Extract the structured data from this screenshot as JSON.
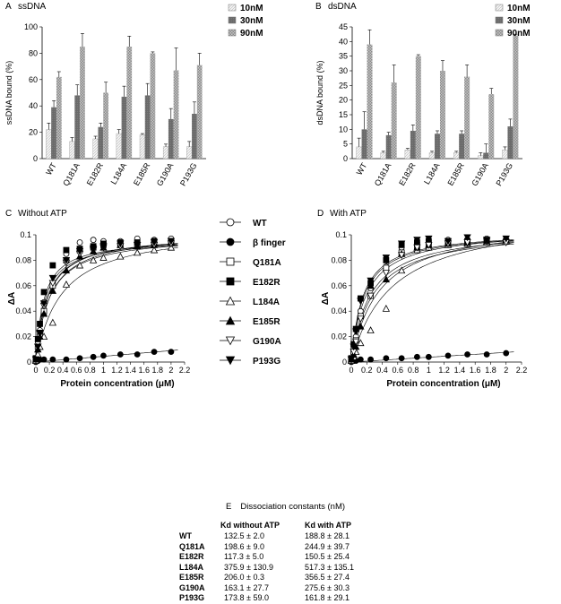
{
  "chart_data": [
    {
      "type": "bar",
      "panel_letter": "A",
      "title": "ssDNA",
      "ylabel": "ssDNA bound (%)",
      "ylim": [
        0,
        100
      ],
      "yticks": [
        0,
        20,
        40,
        60,
        80,
        100
      ],
      "categories": [
        "WT",
        "Q181A",
        "E182R",
        "L184A",
        "E185R",
        "G190A",
        "P193G"
      ],
      "series": [
        {
          "name": "10nM",
          "values": [
            22,
            13,
            15,
            19,
            18,
            9,
            9
          ],
          "errors": [
            5,
            3,
            2,
            3,
            1,
            2,
            4
          ],
          "color": "#e2e2e2"
        },
        {
          "name": "30nM",
          "values": [
            39,
            48,
            24,
            47,
            48,
            30,
            34
          ],
          "errors": [
            5,
            8,
            3,
            8,
            9,
            8,
            9
          ],
          "color": "#6d6d6d"
        },
        {
          "name": "90nM",
          "values": [
            62,
            85,
            50,
            85,
            80,
            67,
            71
          ],
          "errors": [
            4,
            10,
            8,
            8,
            1,
            17,
            9
          ],
          "color": "#a8a8a8"
        }
      ]
    },
    {
      "type": "bar",
      "panel_letter": "B",
      "title": "dsDNA",
      "ylabel": "dsDNA bound (%)",
      "ylim": [
        0,
        45
      ],
      "yticks": [
        0,
        5,
        10,
        15,
        20,
        25,
        30,
        35,
        40,
        45
      ],
      "categories": [
        "WT",
        "Q181A",
        "E182R",
        "L184A",
        "E185R",
        "G190A",
        "P193G"
      ],
      "series": [
        {
          "name": "10nM",
          "values": [
            4,
            2,
            3,
            2,
            2,
            1,
            3
          ],
          "errors": [
            3,
            0.5,
            0.5,
            0.5,
            0.5,
            1,
            1
          ],
          "color": "#e2e2e2"
        },
        {
          "name": "30nM",
          "values": [
            10,
            8,
            9.5,
            8.5,
            8.5,
            2,
            11
          ],
          "errors": [
            6,
            1,
            2,
            1,
            1,
            3,
            2.5
          ],
          "color": "#6d6d6d"
        },
        {
          "name": "90nM",
          "values": [
            39,
            26,
            35,
            30,
            28,
            22,
            42
          ],
          "errors": [
            5,
            6,
            0.5,
            3.5,
            4,
            2,
            0.5
          ],
          "color": "#a8a8a8"
        }
      ]
    },
    {
      "type": "scatter",
      "panel_letter": "C",
      "title": "Without ATP",
      "xlabel": "Protein concentration (μM)",
      "ylabel": "ΔA",
      "xlim": [
        0,
        2.2
      ],
      "ylim": [
        0,
        0.1
      ],
      "xticks": [
        "0",
        "0.2",
        "0.4",
        "0.6",
        "0.8",
        "1",
        "1.2",
        "1.4",
        "1.6",
        "1.8",
        "2",
        "2.2"
      ],
      "yticks": [
        "0",
        "0.02",
        "0.04",
        "0.06",
        "0.08",
        "0.1"
      ],
      "x": [
        0,
        0.03,
        0.06,
        0.12,
        0.25,
        0.45,
        0.65,
        0.85,
        1.0,
        1.25,
        1.5,
        1.75,
        2.0
      ],
      "series": [
        {
          "name": "WT",
          "marker": "circle-open",
          "fit_max": 0.097,
          "kd_uM": 0.1325,
          "values": [
            0.001,
            0.016,
            0.025,
            0.047,
            0.062,
            0.085,
            0.094,
            0.096,
            0.095,
            0.095,
            0.097,
            0.096,
            0.097
          ]
        },
        {
          "name": "β finger",
          "marker": "circle-filled",
          "fit_slope": 0.0045,
          "values": [
            0,
            0.001,
            0.002,
            0.002,
            0.002,
            0.002,
            0.003,
            0.004,
            0.005,
            0.006,
            0.006,
            0.008,
            0.008
          ]
        },
        {
          "name": "Q181A",
          "marker": "square-open",
          "fit_max": 0.1,
          "kd_uM": 0.1986,
          "values": [
            0.002,
            0.012,
            0.02,
            0.04,
            0.06,
            0.08,
            0.088,
            0.09,
            0.092,
            0.092,
            0.093,
            0.094,
            0.095
          ]
        },
        {
          "name": "E182R",
          "marker": "square-filled",
          "fit_max": 0.097,
          "kd_uM": 0.1173,
          "values": [
            0.003,
            0.018,
            0.03,
            0.055,
            0.076,
            0.088,
            0.089,
            0.091,
            0.093,
            0.094,
            0.094,
            0.095,
            0.094
          ]
        },
        {
          "name": "L184A",
          "marker": "triangle-up-open",
          "fit_max": 0.106,
          "kd_uM": 0.3759,
          "values": [
            0.001,
            0.006,
            0.012,
            0.02,
            0.031,
            0.061,
            0.076,
            0.08,
            0.082,
            0.083,
            0.086,
            0.088,
            0.09
          ]
        },
        {
          "name": "E185R",
          "marker": "triangle-up-filled",
          "fit_max": 0.102,
          "kd_uM": 0.206,
          "values": [
            0.002,
            0.01,
            0.02,
            0.038,
            0.056,
            0.072,
            0.083,
            0.087,
            0.09,
            0.092,
            0.091,
            0.092,
            0.094
          ]
        },
        {
          "name": "G190A",
          "marker": "triangle-down-open",
          "fit_max": 0.1,
          "kd_uM": 0.1631,
          "values": [
            0.002,
            0.012,
            0.022,
            0.044,
            0.062,
            0.078,
            0.085,
            0.088,
            0.09,
            0.091,
            0.092,
            0.092,
            0.093
          ]
        },
        {
          "name": "P193G",
          "marker": "triangle-down-filled",
          "fit_max": 0.101,
          "kd_uM": 0.1738,
          "values": [
            0.002,
            0.012,
            0.023,
            0.046,
            0.066,
            0.08,
            0.087,
            0.089,
            0.091,
            0.093,
            0.092,
            0.094,
            0.095
          ]
        }
      ]
    },
    {
      "type": "scatter",
      "panel_letter": "D",
      "title": "With ATP",
      "xlabel": "Protein concentration (μM)",
      "ylabel": "ΔA",
      "xlim": [
        0,
        2.2
      ],
      "ylim": [
        0,
        0.1
      ],
      "xticks": [
        "0",
        "0.2",
        "0.4",
        "0.6",
        "0.8",
        "1",
        "1.2",
        "1.4",
        "1.6",
        "1.8",
        "2",
        "2.2"
      ],
      "yticks": [
        "0",
        "0.02",
        "0.04",
        "0.06",
        "0.08",
        "0.1"
      ],
      "x": [
        0,
        0.03,
        0.06,
        0.12,
        0.25,
        0.45,
        0.65,
        0.85,
        1.0,
        1.25,
        1.5,
        1.75,
        2.0
      ],
      "series": [
        {
          "name": "WT",
          "marker": "circle-open",
          "fit_max": 0.104,
          "kd_uM": 0.1888,
          "values": [
            0.001,
            0.01,
            0.02,
            0.04,
            0.058,
            0.075,
            0.09,
            0.094,
            0.095,
            0.096,
            0.096,
            0.097,
            0.095
          ]
        },
        {
          "name": "β finger",
          "marker": "circle-filled",
          "fit_slope": 0.0038,
          "values": [
            0,
            0.001,
            0.001,
            0.002,
            0.002,
            0.003,
            0.003,
            0.004,
            0.004,
            0.005,
            0.006,
            0.006,
            0.007
          ]
        },
        {
          "name": "Q181A",
          "marker": "square-open",
          "fit_max": 0.105,
          "kd_uM": 0.2449,
          "values": [
            0.002,
            0.008,
            0.017,
            0.036,
            0.052,
            0.074,
            0.086,
            0.09,
            0.092,
            0.094,
            0.095,
            0.094,
            0.095
          ]
        },
        {
          "name": "E182R",
          "marker": "square-filled",
          "fit_max": 0.103,
          "kd_uM": 0.1505,
          "values": [
            0.003,
            0.014,
            0.026,
            0.05,
            0.062,
            0.08,
            0.092,
            0.094,
            0.095,
            0.094,
            0.095,
            0.096,
            0.095
          ]
        },
        {
          "name": "L184A",
          "marker": "triangle-up-open",
          "fit_max": 0.117,
          "kd_uM": 0.5173,
          "values": [
            0.001,
            0.004,
            0.008,
            0.015,
            0.025,
            0.042,
            0.072,
            0.088,
            0.09,
            0.092,
            0.093,
            0.094,
            0.095
          ]
        },
        {
          "name": "E185R",
          "marker": "triangle-up-filled",
          "fit_max": 0.111,
          "kd_uM": 0.3565,
          "values": [
            0.002,
            0.006,
            0.012,
            0.028,
            0.06,
            0.065,
            0.085,
            0.09,
            0.092,
            0.093,
            0.094,
            0.095,
            0.096
          ]
        },
        {
          "name": "G190A",
          "marker": "triangle-down-open",
          "fit_max": 0.105,
          "kd_uM": 0.2756,
          "values": [
            0.002,
            0.008,
            0.016,
            0.034,
            0.052,
            0.07,
            0.084,
            0.09,
            0.092,
            0.093,
            0.094,
            0.095,
            0.094
          ]
        },
        {
          "name": "P193G",
          "marker": "triangle-down-filled",
          "fit_max": 0.103,
          "kd_uM": 0.1618,
          "values": [
            0.002,
            0.012,
            0.024,
            0.048,
            0.064,
            0.082,
            0.093,
            0.096,
            0.097,
            0.095,
            0.098,
            0.096,
            0.097
          ]
        }
      ]
    },
    {
      "type": "table",
      "panel_letter": "E",
      "title": "Dissociation constants (nM)",
      "columns": [
        "",
        "Kd without ATP",
        "Kd with ATP"
      ],
      "rows": [
        [
          "WT",
          "132.5 ± 2.0",
          "188.8 ± 28.1"
        ],
        [
          "Q181A",
          "198.6 ± 9.0",
          "244.9 ± 39.7"
        ],
        [
          "E182R",
          "117.3 ± 5.0",
          "150.5 ± 25.4"
        ],
        [
          "L184A",
          "375.9 ± 130.9",
          "517.3 ± 135.1"
        ],
        [
          "E185R",
          "206.0 ± 0.3",
          "356.5 ± 27.4"
        ],
        [
          "G190A",
          "163.1 ± 27.7",
          "275.6 ± 30.3"
        ],
        [
          "P193G",
          "173.8 ± 59.0",
          "161.8 ± 29.1"
        ]
      ]
    }
  ]
}
